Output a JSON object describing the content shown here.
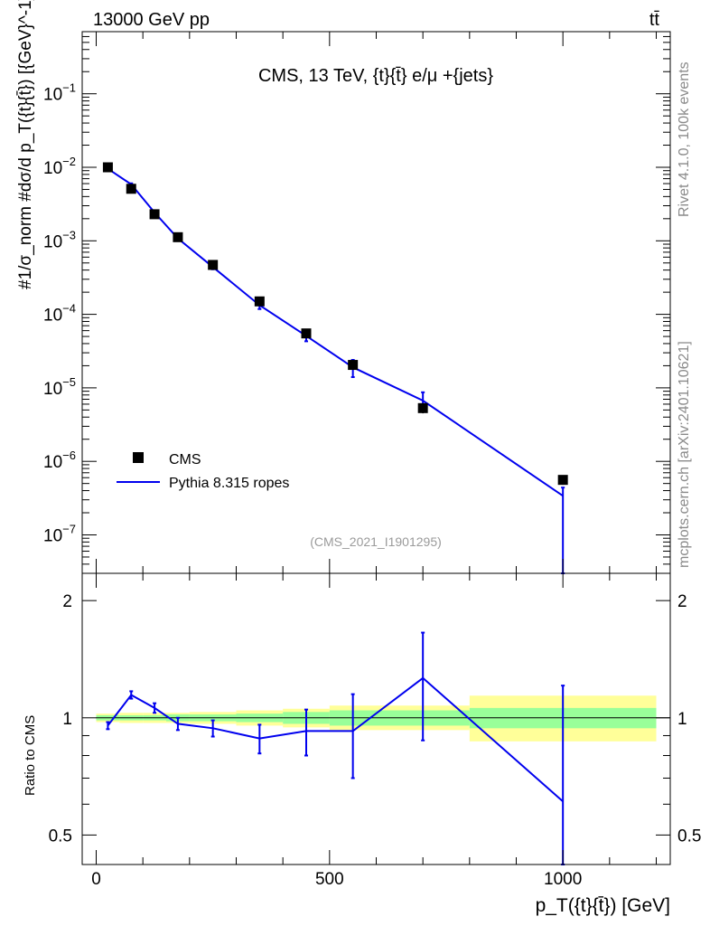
{
  "header": {
    "left": "13000 GeV pp",
    "right": "tt̄"
  },
  "side_text": {
    "rivet": "Rivet 4.1.0,  100k events",
    "mcplots": "mcplots.cern.ch [arXiv:2401.10621]"
  },
  "chart_data": [
    {
      "type": "line",
      "panel": "main",
      "title": "CMS, 13 TeV, {t}{t̄} e/μ +{jets}",
      "watermark": "(CMS_2021_I1901295)",
      "xlabel": "p_T({t}{t̄}) [GeV]",
      "ylabel": "#1/σ_norm #dσ/d p_T({t}{t̄}) [{GeV}^-1]",
      "yscale": "log",
      "xlim": [
        -30,
        1230
      ],
      "ylim": [
        3e-08,
        0.7
      ],
      "ytick_labels": [
        {
          "base": "10",
          "exp": "−7",
          "value": 1e-07
        },
        {
          "base": "10",
          "exp": "−6",
          "value": 1e-06
        },
        {
          "base": "10",
          "exp": "−5",
          "value": 1e-05
        },
        {
          "base": "10",
          "exp": "−4",
          "value": 0.0001
        },
        {
          "base": "10",
          "exp": "−3",
          "value": 0.001
        },
        {
          "base": "10",
          "exp": "−2",
          "value": 0.01
        },
        {
          "base": "10",
          "exp": "−1",
          "value": 0.1
        }
      ],
      "legend": {
        "placement": "lower-left",
        "entries": [
          {
            "label": "CMS",
            "style": "marker",
            "color": "#000000"
          },
          {
            "label": "Pythia 8.315 ropes",
            "style": "line",
            "color": "#0000ee"
          }
        ]
      },
      "series": [
        {
          "name": "CMS",
          "x": [
            25,
            75,
            125,
            175,
            250,
            350,
            450,
            550,
            700,
            1000
          ],
          "y": [
            0.01,
            0.0051,
            0.0023,
            0.00112,
            0.00047,
            0.00015,
            5.5e-05,
            2.05e-05,
            5.3e-06,
            5.6e-07
          ],
          "yerr": [
            0.0002,
            0.0001,
            5e-05,
            3e-05,
            1.5e-05,
            8e-06,
            4e-06,
            2e-06,
            8e-07,
            8e-08
          ]
        },
        {
          "name": "Pythia 8.315 ropes",
          "x": [
            25,
            75,
            125,
            175,
            250,
            350,
            450,
            550,
            700,
            1000
          ],
          "y": [
            0.00955,
            0.00585,
            0.00243,
            0.00108,
            0.00044,
            0.000133,
            5.1e-05,
            1.9e-05,
            6.7e-06,
            3.4e-07
          ],
          "yerr_low": [
            0.0003,
            0.0002,
            0.0001,
            5e-05,
            3e-05,
            1.5e-05,
            8e-06,
            5e-06,
            1.5e-06,
            3.4e-07
          ],
          "yerr_high": [
            0.0003,
            0.0002,
            0.0001,
            5e-05,
            3e-05,
            1.5e-05,
            8e-06,
            5e-06,
            2e-06,
            1e-07
          ]
        }
      ]
    },
    {
      "type": "line",
      "panel": "ratio",
      "xlabel": "p_T({t}{t̄}) [GeV]",
      "ylabel": "Ratio to CMS",
      "yscale": "log",
      "xlim": [
        -30,
        1230
      ],
      "ylim": [
        0.42,
        2.35
      ],
      "xticks": [
        0,
        500,
        1000
      ],
      "xtick_labels": [
        "0",
        "500",
        "1000"
      ],
      "yticks": [
        0.5,
        1,
        2
      ],
      "ytick_labels": [
        "0.5",
        "1",
        "2"
      ],
      "bands": {
        "bin_edges": [
          0,
          50,
          100,
          150,
          200,
          300,
          400,
          500,
          600,
          800,
          1200
        ],
        "inner_low": [
          0.985,
          0.985,
          0.985,
          0.98,
          0.98,
          0.975,
          0.965,
          0.955,
          0.955,
          0.94
        ],
        "inner_high": [
          1.015,
          1.015,
          1.015,
          1.02,
          1.02,
          1.025,
          1.035,
          1.045,
          1.045,
          1.06
        ],
        "outer_low": [
          0.975,
          0.97,
          0.97,
          0.97,
          0.965,
          0.955,
          0.945,
          0.93,
          0.93,
          0.87
        ],
        "outer_high": [
          1.025,
          1.03,
          1.03,
          1.03,
          1.035,
          1.045,
          1.055,
          1.075,
          1.075,
          1.14
        ],
        "inner_color": "#99ff99",
        "outer_color": "#ffff99"
      },
      "series": [
        {
          "name": "Pythia 8.315 ropes / CMS",
          "x": [
            25,
            75,
            125,
            175,
            250,
            350,
            450,
            550,
            700,
            1000
          ],
          "y": [
            0.955,
            1.145,
            1.06,
            0.965,
            0.94,
            0.885,
            0.925,
            0.925,
            1.265,
            0.61
          ],
          "yerr_low": [
            0.02,
            0.025,
            0.03,
            0.035,
            0.045,
            0.075,
            0.125,
            0.225,
            0.39,
            0.25
          ],
          "yerr_high": [
            0.02,
            0.025,
            0.03,
            0.035,
            0.045,
            0.075,
            0.125,
            0.225,
            0.39,
            0.6
          ],
          "color": "#0000ee"
        }
      ]
    }
  ]
}
